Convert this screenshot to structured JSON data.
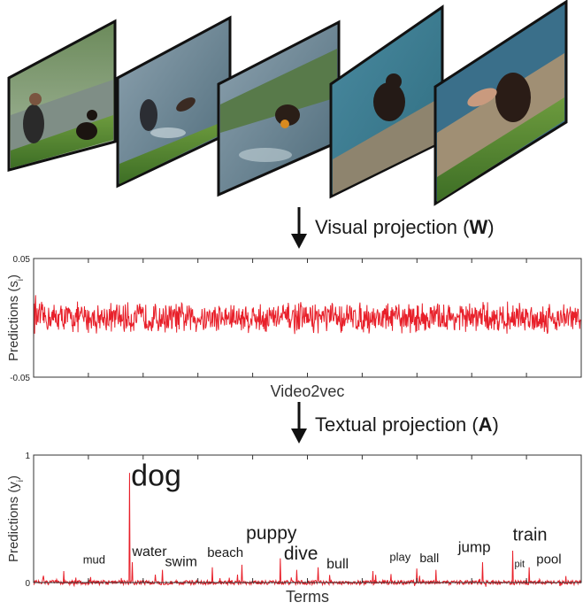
{
  "frames": {
    "count": 5,
    "items": [
      {
        "name": "frame-1",
        "scene": "woman kneeling beside dog on pond bank"
      },
      {
        "name": "frame-2",
        "scene": "person and dog jumping into pond"
      },
      {
        "name": "frame-3",
        "scene": "dog swimming with toy"
      },
      {
        "name": "frame-4",
        "scene": "dog climbing out onto ledge"
      },
      {
        "name": "frame-5",
        "scene": "hand petting dog on grass"
      }
    ]
  },
  "visual_projection": {
    "text": "Visual projection (",
    "bold": "W",
    "close": ")"
  },
  "textual_projection": {
    "text": "Textual projection (",
    "bold": "A",
    "close": ")"
  },
  "chart_data": [
    {
      "type": "line",
      "ylabel": "Predictions (s",
      "ylabel_sub": "i",
      "ylabel_close": ")",
      "xlabel": "Video2vec",
      "ylim": [
        -0.05,
        0.05
      ],
      "ytick_labels": [
        "0.05",
        "-0.05"
      ],
      "series": [
        {
          "color": "#e8202a",
          "values_description_free": true
        }
      ],
      "n_points": 1100,
      "noise_amplitude": 0.012
    },
    {
      "type": "line",
      "ylabel": "Predictions (y",
      "ylabel_sub": "i",
      "ylabel_close": ")",
      "xlabel": "Terms",
      "ylim": [
        0,
        1
      ],
      "ytick_labels": [
        "1",
        "0"
      ],
      "series": [
        {
          "color": "#e8202a"
        }
      ],
      "n_points": 1000,
      "peaks": [
        {
          "x": 0.175,
          "y": 0.86
        },
        {
          "x": 0.175,
          "y": 0.86
        },
        {
          "x": 0.055,
          "y": 0.09
        },
        {
          "x": 0.18,
          "y": 0.16
        },
        {
          "x": 0.235,
          "y": 0.1
        },
        {
          "x": 0.326,
          "y": 0.12
        },
        {
          "x": 0.38,
          "y": 0.14
        },
        {
          "x": 0.45,
          "y": 0.19
        },
        {
          "x": 0.48,
          "y": 0.1
        },
        {
          "x": 0.52,
          "y": 0.12
        },
        {
          "x": 0.62,
          "y": 0.09
        },
        {
          "x": 0.7,
          "y": 0.11
        },
        {
          "x": 0.735,
          "y": 0.1
        },
        {
          "x": 0.82,
          "y": 0.16
        },
        {
          "x": 0.875,
          "y": 0.25
        },
        {
          "x": 0.905,
          "y": 0.12
        }
      ],
      "annotations": [
        {
          "text": "dog",
          "x": 0.178,
          "y": 0.76,
          "size": 34
        },
        {
          "text": "mud",
          "x": 0.09,
          "y": 0.15,
          "size": 13
        },
        {
          "text": "water",
          "x": 0.18,
          "y": 0.21,
          "size": 16
        },
        {
          "text": "swim",
          "x": 0.24,
          "y": 0.13,
          "size": 16
        },
        {
          "text": "beach",
          "x": 0.317,
          "y": 0.2,
          "size": 15
        },
        {
          "text": "puppy",
          "x": 0.388,
          "y": 0.34,
          "size": 21
        },
        {
          "text": "dive",
          "x": 0.457,
          "y": 0.18,
          "size": 21
        },
        {
          "text": "bull",
          "x": 0.535,
          "y": 0.11,
          "size": 16
        },
        {
          "text": "play",
          "x": 0.65,
          "y": 0.17,
          "size": 13
        },
        {
          "text": "ball",
          "x": 0.705,
          "y": 0.16,
          "size": 14
        },
        {
          "text": "jump",
          "x": 0.775,
          "y": 0.24,
          "size": 17
        },
        {
          "text": "train",
          "x": 0.875,
          "y": 0.33,
          "size": 20
        },
        {
          "text": "pit",
          "x": 0.878,
          "y": 0.12,
          "size": 11
        },
        {
          "text": "pool",
          "x": 0.918,
          "y": 0.15,
          "size": 15
        }
      ]
    }
  ]
}
